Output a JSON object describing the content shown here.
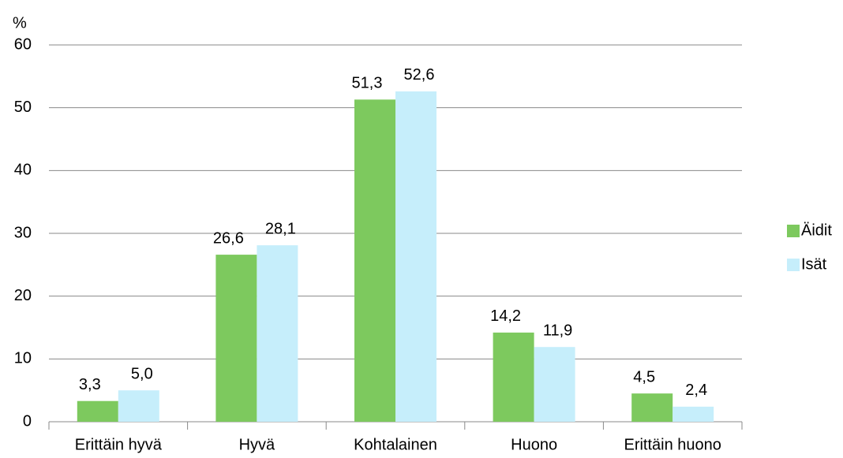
{
  "chart_data": {
    "type": "bar",
    "y_label": "%",
    "categories": [
      "Erittäin hyvä",
      "Hyvä",
      "Kohtalainen",
      "Huono",
      "Erittäin huono"
    ],
    "series": [
      {
        "name": "Äidit",
        "color": "#7dc95e",
        "values": [
          3.3,
          26.6,
          51.3,
          14.2,
          4.5
        ],
        "value_labels": [
          "3,3",
          "26,6",
          "51,3",
          "14,2",
          "4,5"
        ]
      },
      {
        "name": "Isät",
        "color": "#c6eefb",
        "values": [
          5.0,
          28.1,
          52.6,
          11.9,
          2.4
        ],
        "value_labels": [
          "5,0",
          "28,1",
          "52,6",
          "11,9",
          "2,4"
        ]
      }
    ],
    "ylim": [
      0,
      60
    ],
    "yticks": [
      0,
      10,
      20,
      30,
      40,
      50,
      60
    ],
    "grid": true,
    "legend": "right"
  }
}
